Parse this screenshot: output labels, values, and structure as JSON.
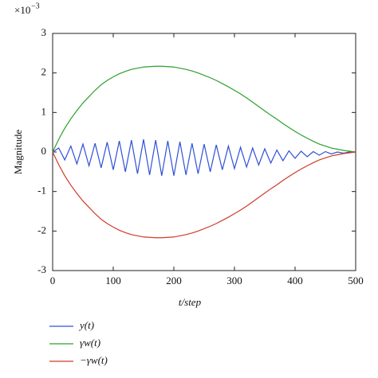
{
  "chart_data": {
    "type": "line",
    "y_scale_base": "×10",
    "y_scale_exponent": "−3",
    "xlabel": "t/step",
    "ylabel": "Magnitude",
    "xlim": [
      0,
      500
    ],
    "ylim": [
      -3,
      3
    ],
    "xticks": [
      0,
      100,
      200,
      300,
      400,
      500
    ],
    "yticks": [
      -3,
      -2,
      -1,
      0,
      1,
      2,
      3
    ],
    "x": [
      0,
      10,
      20,
      30,
      40,
      50,
      60,
      70,
      80,
      90,
      100,
      110,
      120,
      130,
      140,
      150,
      160,
      170,
      180,
      190,
      200,
      210,
      220,
      230,
      240,
      250,
      260,
      270,
      280,
      290,
      300,
      310,
      320,
      330,
      340,
      350,
      360,
      370,
      380,
      390,
      400,
      410,
      420,
      430,
      440,
      450,
      460,
      470,
      480,
      490,
      500
    ],
    "series": [
      {
        "name": "y(t)",
        "color": "#3050d8",
        "values": [
          0,
          0.1,
          -0.2,
          0.15,
          -0.3,
          0.2,
          -0.35,
          0.22,
          -0.4,
          0.25,
          -0.45,
          0.28,
          -0.5,
          0.3,
          -0.55,
          0.32,
          -0.58,
          0.3,
          -0.6,
          0.28,
          -0.6,
          0.26,
          -0.58,
          0.22,
          -0.55,
          0.2,
          -0.5,
          0.18,
          -0.45,
          0.15,
          -0.42,
          0.12,
          -0.38,
          0.1,
          -0.33,
          0.08,
          -0.28,
          0.05,
          -0.22,
          0.03,
          -0.16,
          0.02,
          -0.12,
          0.01,
          -0.08,
          0.01,
          -0.05,
          0,
          -0.03,
          0,
          0
        ]
      },
      {
        "name": "γw(t)",
        "color": "#2ca02c",
        "values": [
          0,
          0.32,
          0.6,
          0.84,
          1.05,
          1.24,
          1.4,
          1.56,
          1.7,
          1.81,
          1.9,
          1.98,
          2.04,
          2.09,
          2.12,
          2.15,
          2.16,
          2.17,
          2.17,
          2.16,
          2.15,
          2.12,
          2.09,
          2.05,
          2.0,
          1.94,
          1.88,
          1.81,
          1.73,
          1.65,
          1.56,
          1.47,
          1.37,
          1.26,
          1.15,
          1.04,
          0.93,
          0.83,
          0.72,
          0.62,
          0.52,
          0.43,
          0.35,
          0.27,
          0.2,
          0.15,
          0.1,
          0.07,
          0.04,
          0.02,
          0
        ]
      },
      {
        "name": "−γw(t)",
        "color": "#d03a2a",
        "values": [
          0,
          -0.32,
          -0.6,
          -0.84,
          -1.05,
          -1.24,
          -1.4,
          -1.56,
          -1.7,
          -1.81,
          -1.9,
          -1.98,
          -2.04,
          -2.09,
          -2.12,
          -2.15,
          -2.16,
          -2.17,
          -2.17,
          -2.16,
          -2.15,
          -2.12,
          -2.09,
          -2.05,
          -2.0,
          -1.94,
          -1.88,
          -1.81,
          -1.73,
          -1.65,
          -1.56,
          -1.47,
          -1.37,
          -1.26,
          -1.15,
          -1.04,
          -0.93,
          -0.83,
          -0.72,
          -0.62,
          -0.52,
          -0.43,
          -0.35,
          -0.27,
          -0.2,
          -0.15,
          -0.1,
          -0.07,
          -0.04,
          -0.02,
          0
        ]
      }
    ]
  }
}
